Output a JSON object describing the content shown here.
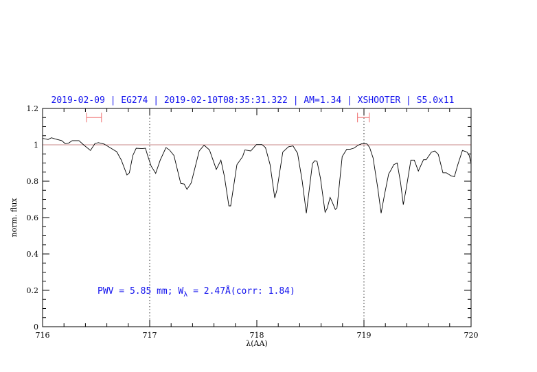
{
  "chart_data": {
    "type": "line",
    "title": "2019-02-09 | EG274 | 2019-02-10T08:35:31.322 | AM=1.34 | XSHOOTER | S5.0x11",
    "xlabel": "λ(AA)",
    "ylabel": "norm. flux",
    "xlim": [
      716,
      720
    ],
    "ylim": [
      0,
      1.2
    ],
    "xticks": [
      716,
      717,
      718,
      719,
      720
    ],
    "xtick_labels": [
      "716",
      "717",
      "718",
      "719",
      "720"
    ],
    "yticks": [
      0,
      0.2,
      0.4,
      0.6,
      0.8,
      1,
      1.2
    ],
    "ytick_labels": [
      "0",
      "0.2",
      "0.4",
      "0.6",
      "0.8",
      "1",
      "1.2"
    ],
    "x_minor_step": 0.2,
    "y_minor_step": 0.05,
    "grid": false,
    "continuum_level": 1.0,
    "vertical_markers": [
      717,
      719
    ],
    "ranges": [
      {
        "x": [
          716.41,
          716.55
        ],
        "y": 1.15
      },
      {
        "x": [
          718.94,
          719.05
        ],
        "y": 1.15
      }
    ],
    "annotation": {
      "prefix": "PWV = 5.85 mm; W",
      "sub": "λ",
      "suffix": " = 2.47Å(corr: 1.84)"
    },
    "colors": {
      "spectrum": "#000000",
      "continuum": "#c88888",
      "ranges": "#f07070",
      "text": "#1010ee"
    },
    "series": [
      {
        "x": [
          716.004,
          716.051,
          716.083,
          716.115,
          716.179,
          716.212,
          716.244,
          716.276,
          716.34,
          716.383,
          716.447,
          716.489,
          716.521,
          716.575,
          716.628,
          716.692,
          716.735,
          716.788,
          716.81,
          716.842,
          716.874,
          716.928,
          716.96,
          716.981,
          717.013,
          717.056,
          717.098,
          717.152,
          717.184,
          717.226,
          717.29,
          717.322,
          717.348,
          717.387,
          717.462,
          717.508,
          717.558,
          717.622,
          717.665,
          717.697,
          717.739,
          717.756,
          717.814,
          717.867,
          717.889,
          717.942,
          717.996,
          718.049,
          718.081,
          718.124,
          718.167,
          718.188,
          718.242,
          718.295,
          718.338,
          718.38,
          718.423,
          718.462,
          718.519,
          718.54,
          718.562,
          718.594,
          718.637,
          718.658,
          718.684,
          718.701,
          718.733,
          718.748,
          718.797,
          718.84,
          718.872,
          718.904,
          718.947,
          718.979,
          719.026,
          719.053,
          719.085,
          719.128,
          719.16,
          719.192,
          719.231,
          719.256,
          719.278,
          719.31,
          719.342,
          719.367,
          719.396,
          719.438,
          719.47,
          719.508,
          719.556,
          719.581,
          719.63,
          719.662,
          719.694,
          719.737,
          719.769,
          719.812,
          719.844,
          719.876,
          719.919,
          719.962,
          719.983,
          720.0
        ],
        "y": [
          1.035,
          1.029,
          1.039,
          1.033,
          1.023,
          1.006,
          1.01,
          1.023,
          1.023,
          1.0,
          0.969,
          1.007,
          1.012,
          1.004,
          0.985,
          0.962,
          0.916,
          0.834,
          0.846,
          0.941,
          0.981,
          0.979,
          0.981,
          0.941,
          0.884,
          0.843,
          0.916,
          0.985,
          0.972,
          0.941,
          0.788,
          0.784,
          0.755,
          0.79,
          0.966,
          0.998,
          0.972,
          0.865,
          0.916,
          0.828,
          0.664,
          0.664,
          0.891,
          0.935,
          0.972,
          0.966,
          1.001,
          1.001,
          0.985,
          0.891,
          0.708,
          0.752,
          0.96,
          0.989,
          0.994,
          0.954,
          0.803,
          0.624,
          0.897,
          0.912,
          0.909,
          0.815,
          0.629,
          0.652,
          0.711,
          0.689,
          0.645,
          0.652,
          0.935,
          0.976,
          0.976,
          0.981,
          0.998,
          1.006,
          1.006,
          0.985,
          0.928,
          0.765,
          0.624,
          0.727,
          0.84,
          0.865,
          0.891,
          0.9,
          0.79,
          0.671,
          0.765,
          0.916,
          0.916,
          0.856,
          0.918,
          0.918,
          0.96,
          0.966,
          0.947,
          0.846,
          0.846,
          0.83,
          0.825,
          0.891,
          0.969,
          0.96,
          0.941,
          0.9
        ]
      }
    ]
  }
}
